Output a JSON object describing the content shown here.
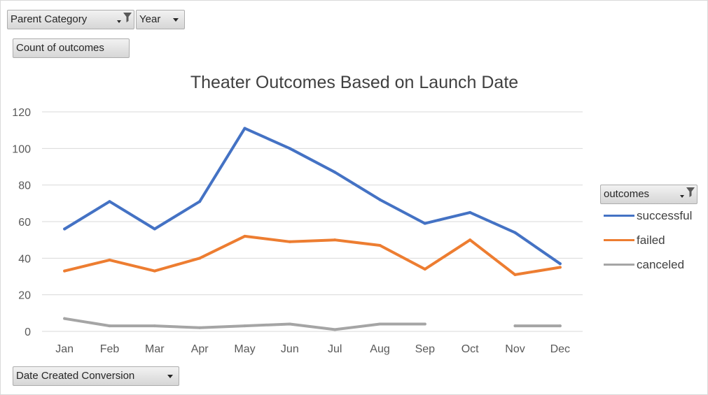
{
  "filters": {
    "parent_category": "Parent Category",
    "year": "Year",
    "values_field": "Count of outcomes",
    "legend_field": "outcomes",
    "axis_field": "Date Created Conversion"
  },
  "colors": {
    "successful": "#4472c4",
    "failed": "#ed7d31",
    "canceled": "#a5a5a5",
    "grid": "#d9d9d9",
    "axis_text": "#595959",
    "title_text": "#404040"
  },
  "chart_data": {
    "type": "line",
    "title": "Theater Outcomes Based on Launch Date",
    "xlabel": "",
    "ylabel": "",
    "categories": [
      "Jan",
      "Feb",
      "Mar",
      "Apr",
      "May",
      "Jun",
      "Jul",
      "Aug",
      "Sep",
      "Oct",
      "Nov",
      "Dec"
    ],
    "ylim": [
      0,
      120
    ],
    "yticks": [
      "0",
      "20",
      "40",
      "60",
      "80",
      "100",
      "120"
    ],
    "grid": true,
    "legend_position": "right",
    "series": [
      {
        "name": "successful",
        "values": [
          56,
          71,
          56,
          71,
          111,
          100,
          87,
          72,
          59,
          65,
          54,
          37
        ]
      },
      {
        "name": "failed",
        "values": [
          33,
          39,
          33,
          40,
          52,
          49,
          50,
          47,
          34,
          50,
          31,
          35
        ]
      },
      {
        "name": "canceled",
        "values": [
          7,
          3,
          3,
          2,
          3,
          4,
          1,
          4,
          4,
          null,
          3,
          3
        ]
      }
    ]
  }
}
